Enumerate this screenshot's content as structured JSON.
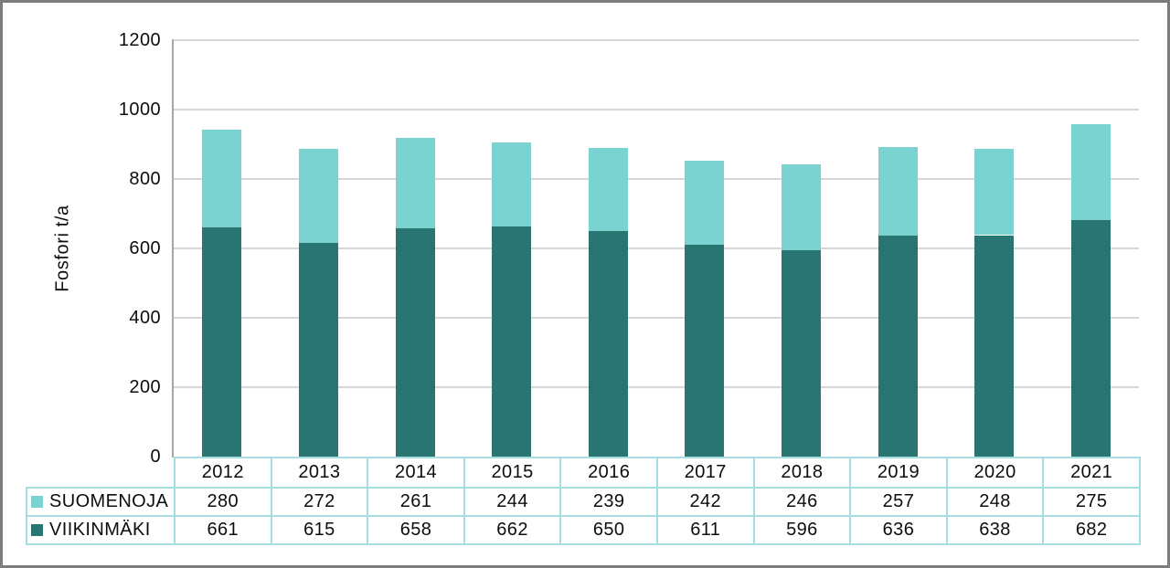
{
  "frame": {
    "border_color": "#7d7d7d",
    "background": "#ffffff"
  },
  "chart_data": {
    "type": "bar",
    "stacked": true,
    "title": "",
    "xlabel": "",
    "ylabel": "Fosfori t/a",
    "categories": [
      "2012",
      "2013",
      "2014",
      "2015",
      "2016",
      "2017",
      "2018",
      "2019",
      "2020",
      "2021"
    ],
    "series": [
      {
        "name": "SUOMENOJA",
        "color": "#7ad2d1",
        "values": [
          280,
          272,
          261,
          244,
          239,
          242,
          246,
          257,
          248,
          275
        ]
      },
      {
        "name": "VIIKINMÄKI",
        "color": "#297571",
        "values": [
          661,
          615,
          658,
          662,
          650,
          611,
          596,
          636,
          638,
          682
        ]
      }
    ],
    "stack_order_bottom_to_top": [
      1,
      0
    ],
    "ylim": [
      0,
      1200
    ],
    "yticks": [
      0,
      200,
      400,
      600,
      800,
      1000,
      1200
    ],
    "grid": true,
    "gridline_color": "#d7d7d7",
    "axis_line_color": "#a6a6a6",
    "table_border_color": "#a7dde1",
    "text_color": "#0d0d0d",
    "legend_position": "table-rows-left"
  }
}
